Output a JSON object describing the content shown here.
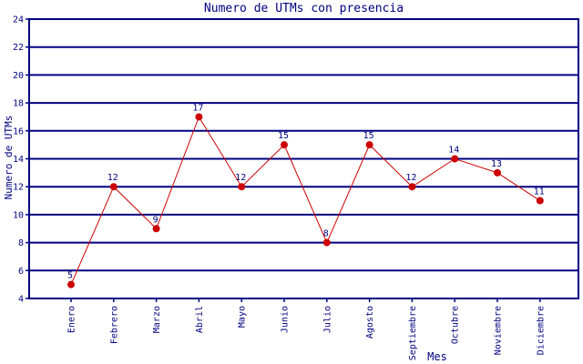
{
  "chart_data": {
    "type": "line",
    "title": "Numero de UTMs con presencia",
    "xlabel": "Mes",
    "ylabel": "Numero de UTMs",
    "categories": [
      "Enero",
      "Febrero",
      "Marzo",
      "Abril",
      "Mayo",
      "Junio",
      "Julio",
      "Agosto",
      "Septiembre",
      "Octubre",
      "Noviembre",
      "Diciembre"
    ],
    "values": [
      5,
      12,
      9,
      17,
      12,
      15,
      8,
      15,
      12,
      14,
      13,
      11
    ],
    "ylim": [
      4,
      24
    ],
    "ytick_step": 2,
    "yticks": [
      4,
      6,
      8,
      10,
      12,
      14,
      16,
      18,
      20,
      22,
      24
    ],
    "grid": "horizontal",
    "legend_position": "none",
    "point_labels_visible": true,
    "colors": {
      "line": "#cc0000",
      "marker": "#cc0000",
      "grid": "#000080",
      "axis": "#000080",
      "text": "#000080",
      "background": "#ffffff"
    }
  }
}
